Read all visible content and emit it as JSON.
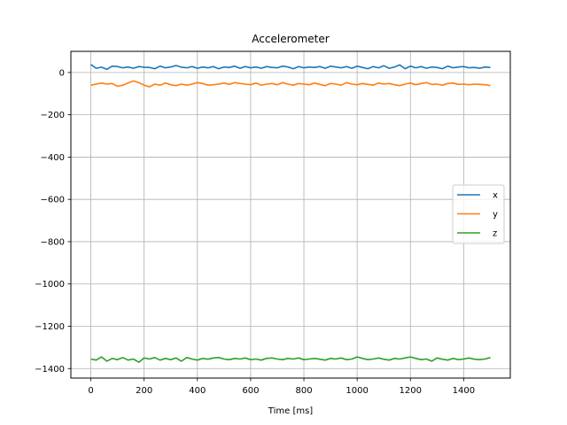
{
  "chart_data": {
    "type": "line",
    "title": "Accelerometer",
    "xlabel": "Time [ms]",
    "ylabel": "",
    "xlim": [
      -75,
      1575
    ],
    "ylim": [
      -1445,
      100
    ],
    "xticks": [
      0,
      200,
      400,
      600,
      800,
      1000,
      1200,
      1400
    ],
    "yticks": [
      0,
      -200,
      -400,
      -600,
      -800,
      -1000,
      -1200,
      -1400
    ],
    "grid": true,
    "legend_position": "center-right",
    "x": [
      0,
      20,
      40,
      60,
      80,
      100,
      120,
      140,
      160,
      180,
      200,
      220,
      240,
      260,
      280,
      300,
      320,
      340,
      360,
      380,
      400,
      420,
      440,
      460,
      480,
      500,
      520,
      540,
      560,
      580,
      600,
      620,
      640,
      660,
      680,
      700,
      720,
      740,
      760,
      780,
      800,
      820,
      840,
      860,
      880,
      900,
      920,
      940,
      960,
      980,
      1000,
      1020,
      1040,
      1060,
      1080,
      1100,
      1120,
      1140,
      1160,
      1180,
      1200,
      1220,
      1240,
      1260,
      1280,
      1300,
      1320,
      1340,
      1360,
      1380,
      1400,
      1420,
      1440,
      1460,
      1480,
      1500
    ],
    "series": [
      {
        "name": "x",
        "color": "#1f77b4",
        "values": [
          38,
          20,
          25,
          15,
          30,
          28,
          22,
          26,
          20,
          28,
          25,
          24,
          18,
          30,
          22,
          26,
          33,
          25,
          22,
          28,
          20,
          26,
          22,
          28,
          18,
          26,
          24,
          30,
          20,
          28,
          22,
          26,
          20,
          28,
          24,
          22,
          30,
          26,
          18,
          28,
          22,
          26,
          24,
          28,
          20,
          30,
          26,
          22,
          28,
          20,
          30,
          24,
          18,
          28,
          22,
          32,
          20,
          26,
          36,
          18,
          30,
          22,
          28,
          20,
          26,
          24,
          18,
          30,
          22,
          26,
          28,
          22,
          24,
          20,
          26,
          24
        ]
      },
      {
        "name": "y",
        "color": "#ff7f0e",
        "values": [
          -60,
          -55,
          -50,
          -55,
          -52,
          -65,
          -60,
          -50,
          -40,
          -48,
          -60,
          -68,
          -55,
          -60,
          -50,
          -58,
          -62,
          -55,
          -60,
          -55,
          -48,
          -52,
          -60,
          -58,
          -55,
          -50,
          -56,
          -48,
          -52,
          -55,
          -58,
          -50,
          -60,
          -55,
          -52,
          -58,
          -48,
          -55,
          -60,
          -52,
          -55,
          -58,
          -50,
          -56,
          -62,
          -52,
          -55,
          -60,
          -48,
          -55,
          -58,
          -52,
          -56,
          -60,
          -50,
          -55,
          -52,
          -58,
          -62,
          -55,
          -50,
          -58,
          -52,
          -48,
          -56,
          -55,
          -60,
          -52,
          -50,
          -56,
          -55,
          -58,
          -55,
          -56,
          -58,
          -62
        ]
      },
      {
        "name": "z",
        "color": "#2ca02c",
        "values": [
          -1355,
          -1360,
          -1345,
          -1365,
          -1352,
          -1358,
          -1348,
          -1360,
          -1355,
          -1370,
          -1350,
          -1355,
          -1348,
          -1360,
          -1352,
          -1358,
          -1350,
          -1365,
          -1348,
          -1355,
          -1360,
          -1352,
          -1356,
          -1350,
          -1348,
          -1355,
          -1358,
          -1352,
          -1355,
          -1350,
          -1358,
          -1355,
          -1360,
          -1352,
          -1350,
          -1355,
          -1358,
          -1352,
          -1355,
          -1350,
          -1358,
          -1355,
          -1352,
          -1356,
          -1360,
          -1352,
          -1355,
          -1350,
          -1358,
          -1355,
          -1345,
          -1352,
          -1358,
          -1355,
          -1350,
          -1356,
          -1360,
          -1352,
          -1355,
          -1350,
          -1345,
          -1352,
          -1358,
          -1355,
          -1365,
          -1350,
          -1356,
          -1360,
          -1352,
          -1358,
          -1355,
          -1350,
          -1356,
          -1358,
          -1355,
          -1348
        ]
      }
    ]
  }
}
